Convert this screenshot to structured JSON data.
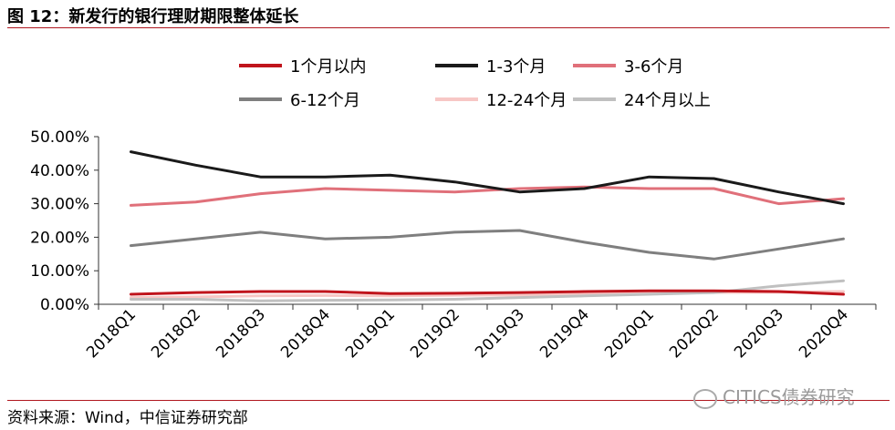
{
  "figure_title": "图 12：新发行的银行理财期限整体延长",
  "source": "资料来源：Wind，中信证券研究部",
  "watermark": "CITICS债券研究",
  "chart_data": {
    "type": "line",
    "title": "",
    "xlabel": "",
    "ylabel": "",
    "categories": [
      "2018Q1",
      "2018Q2",
      "2018Q3",
      "2018Q4",
      "2019Q1",
      "2019Q2",
      "2019Q3",
      "2019Q4",
      "2020Q1",
      "2020Q2",
      "2020Q3",
      "2020Q4"
    ],
    "ylim": [
      0,
      50
    ],
    "yticks": [
      "0.00%",
      "10.00%",
      "20.00%",
      "30.00%",
      "40.00%",
      "50.00%"
    ],
    "grid": false,
    "legend_position": "top",
    "series": [
      {
        "name": "1个月以内",
        "color": "#c0141c",
        "values": [
          3.0,
          3.5,
          3.8,
          3.8,
          3.2,
          3.3,
          3.5,
          3.8,
          4.0,
          4.0,
          3.8,
          3.0
        ]
      },
      {
        "name": "1-3个月",
        "color": "#1a1a1a",
        "values": [
          45.5,
          41.5,
          38.0,
          38.0,
          38.5,
          36.5,
          33.5,
          34.5,
          38.0,
          37.5,
          33.5,
          30.0
        ]
      },
      {
        "name": "3-6个月",
        "color": "#e0707a",
        "values": [
          29.5,
          30.5,
          33.0,
          34.5,
          34.0,
          33.5,
          34.5,
          35.0,
          34.5,
          34.5,
          30.0,
          31.5
        ]
      },
      {
        "name": "6-12个月",
        "color": "#7f7f7f",
        "values": [
          17.5,
          19.5,
          21.5,
          19.5,
          20.0,
          21.5,
          22.0,
          18.5,
          15.5,
          13.5,
          16.5,
          19.5
        ]
      },
      {
        "name": "12-24个月",
        "color": "#f7c7c5",
        "values": [
          2.0,
          2.2,
          2.5,
          2.6,
          2.5,
          2.7,
          2.8,
          3.0,
          3.2,
          3.5,
          3.6,
          3.8
        ]
      },
      {
        "name": "24个月以上",
        "color": "#c0c0c0",
        "values": [
          1.5,
          1.5,
          1.0,
          1.2,
          1.3,
          1.5,
          2.0,
          2.5,
          3.0,
          3.5,
          5.5,
          7.0
        ]
      }
    ]
  }
}
